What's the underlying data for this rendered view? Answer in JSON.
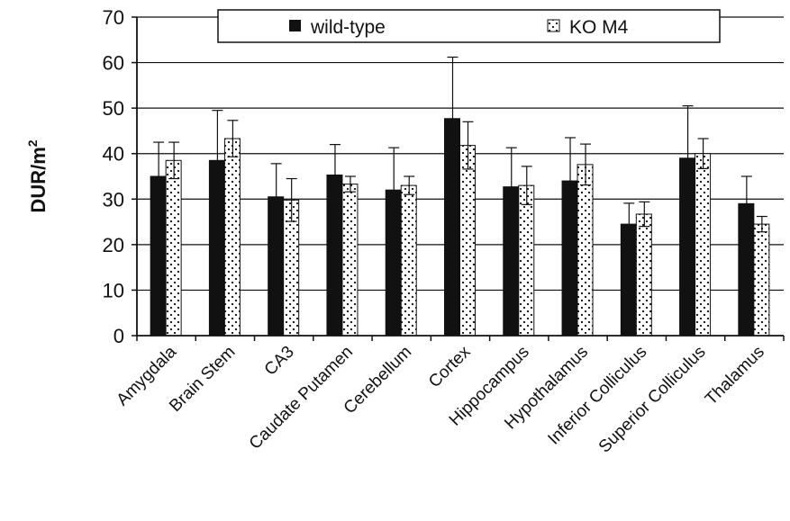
{
  "chart_data": {
    "type": "bar",
    "ylabel": "DUR/m",
    "ylabel_superscript": "2",
    "ylim": [
      0,
      70
    ],
    "yticks": [
      "0",
      "10",
      "20",
      "30",
      "40",
      "50",
      "60",
      "70"
    ],
    "grid": true,
    "legend_position": "top",
    "categories": [
      "Amygdala",
      "Brain Stem",
      "CA3",
      "Caudate Putamen",
      "Cerebellum",
      "Cortex",
      "Hippocampus",
      "Hypothalamus",
      "Inferior Colliculus",
      "Superior Colliculus",
      "Thalamus"
    ],
    "series": [
      {
        "name": "wild-type",
        "style": "solid",
        "color": "#111111",
        "values": [
          35.0,
          38.5,
          30.5,
          35.3,
          32.0,
          47.7,
          32.7,
          34.0,
          24.5,
          39.0,
          29.0
        ],
        "errors": [
          7.5,
          11.0,
          7.3,
          6.7,
          9.3,
          13.5,
          8.6,
          9.5,
          4.6,
          11.5,
          6.0
        ]
      },
      {
        "name": "KO M4",
        "style": "dotted",
        "color": "#ffffff",
        "values": [
          38.5,
          43.3,
          29.8,
          33.3,
          33.0,
          41.8,
          33.0,
          37.6,
          26.7,
          40.0,
          24.5
        ],
        "errors": [
          4.0,
          4.0,
          4.7,
          1.7,
          2.0,
          5.2,
          4.2,
          4.5,
          2.7,
          3.3,
          1.7
        ]
      }
    ]
  }
}
